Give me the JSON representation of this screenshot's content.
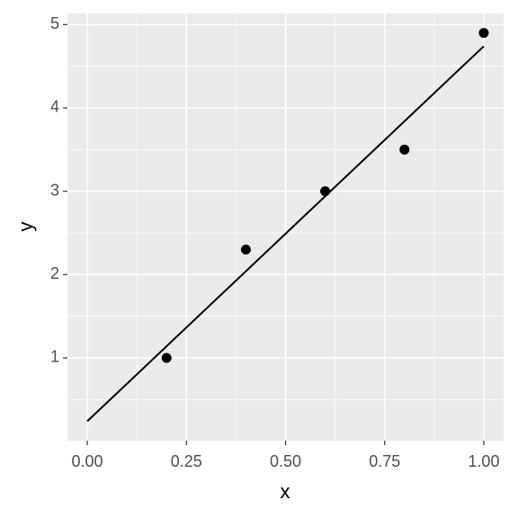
{
  "chart_data": {
    "type": "scatter",
    "x_label": "x",
    "y_label": "y",
    "x": [
      0.2,
      0.4,
      0.6,
      0.8,
      1.0
    ],
    "values": [
      1.0,
      2.3,
      3.0,
      3.5,
      4.9
    ],
    "color": "#000000",
    "fit_line": {
      "x": [
        0,
        1
      ],
      "values": [
        0.24,
        4.74
      ],
      "color": "#000000"
    },
    "xlim": [
      -0.05,
      1.05
    ],
    "ylim": [
      0.007,
      5.133
    ],
    "xticks": [
      {
        "value": 0,
        "label": "0.00"
      },
      {
        "value": 0.25,
        "label": "0.25"
      },
      {
        "value": 0.5,
        "label": "0.50"
      },
      {
        "value": 0.75,
        "label": "0.75"
      },
      {
        "value": 1,
        "label": "1.00"
      }
    ],
    "yticks": [
      1,
      2,
      3,
      4,
      5
    ],
    "x_minor_breaks": [
      0.125,
      0.375,
      0.625,
      0.875
    ],
    "y_minor_breaks": [
      0.5,
      1.5,
      2.5,
      3.5,
      4.5
    ],
    "grid": true
  }
}
